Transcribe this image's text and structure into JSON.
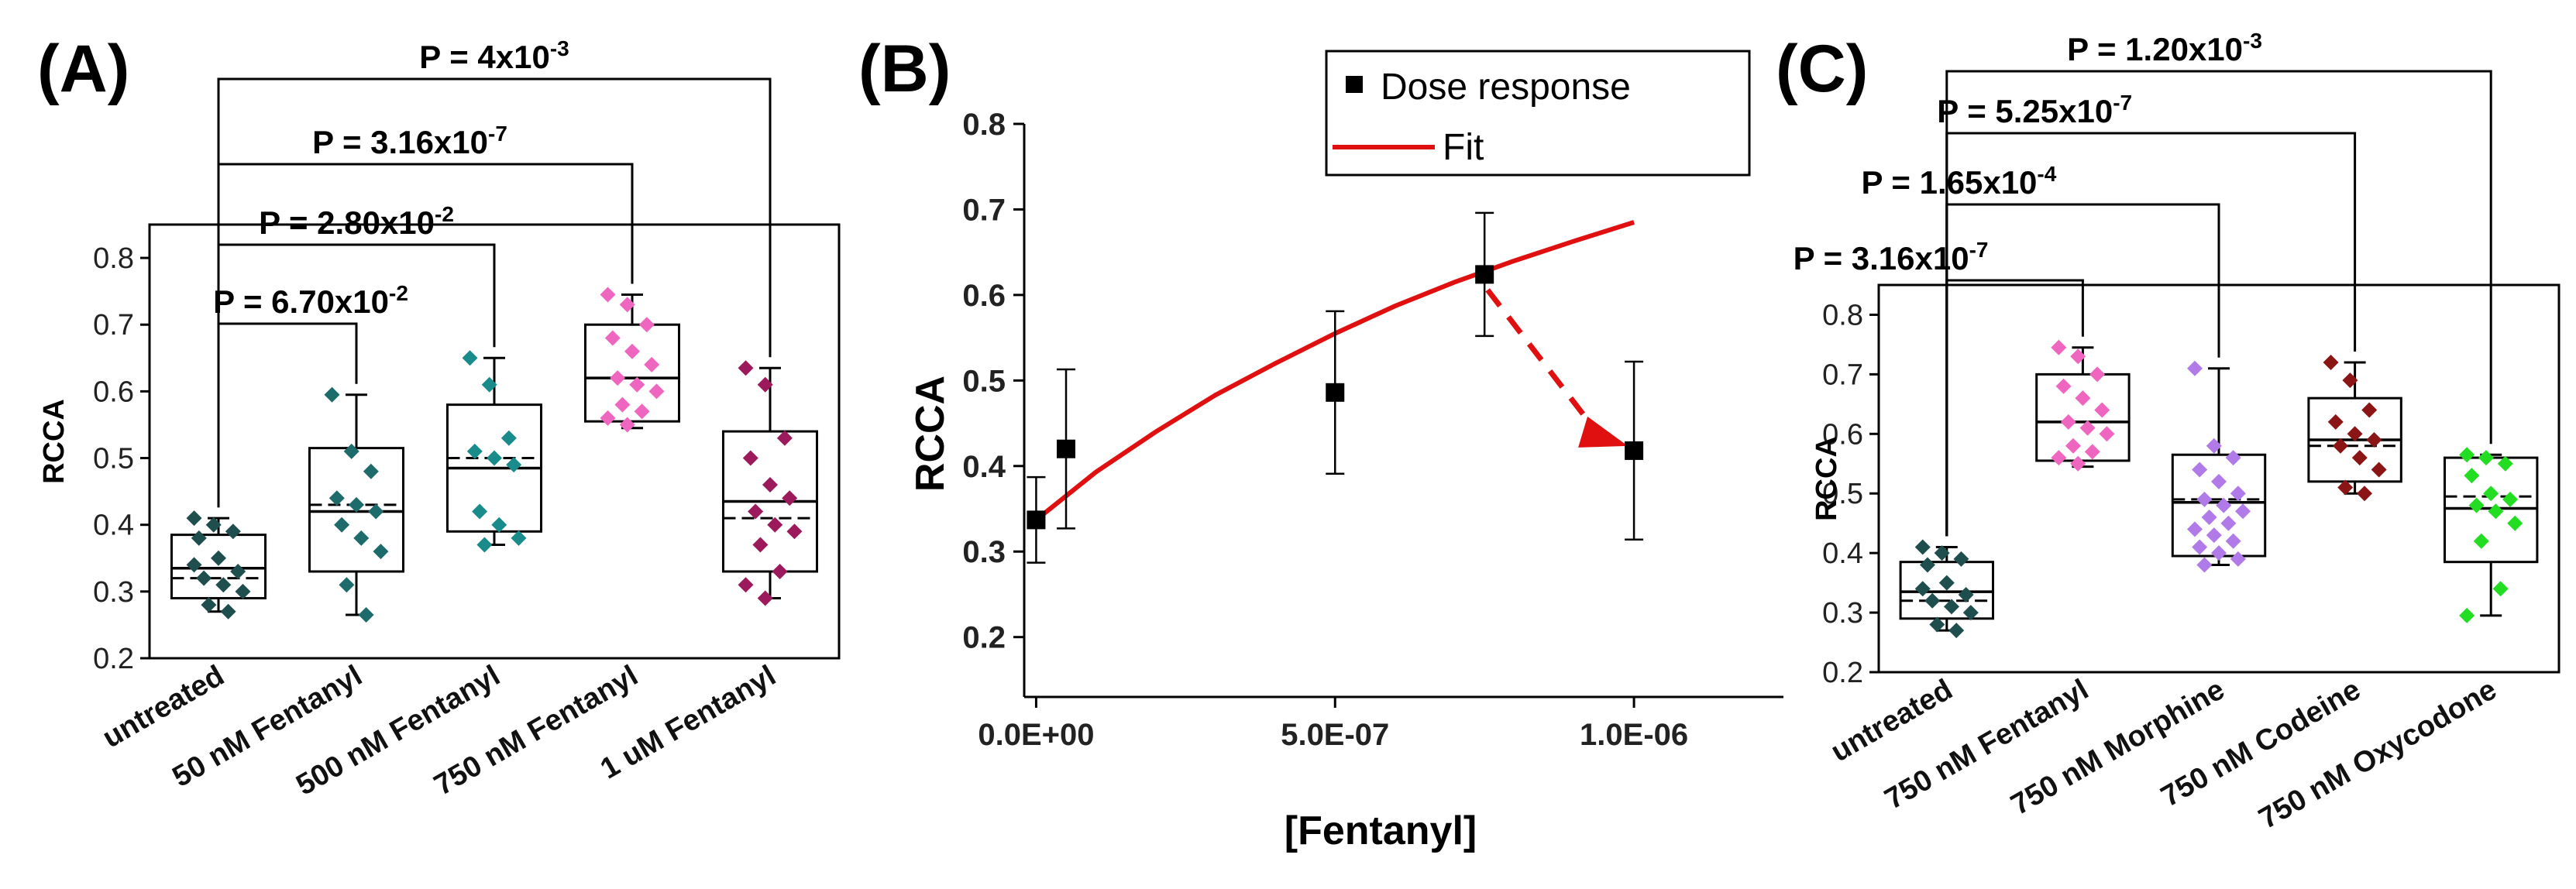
{
  "colors": {
    "untreated": "#1f4e4e",
    "fentanyl_50": "#1d6b6b",
    "fentanyl_500": "#1a8b8b",
    "fentanyl_750": "#ee66c0",
    "fentanyl_1u": "#9c1a5c",
    "morphine": "#b07ae8",
    "codeine": "#8b1515",
    "oxycodone": "#22dd22",
    "fit": "#e01010"
  },
  "chart_data": [
    {
      "type": "box",
      "panel_label": "(A)",
      "ylabel": "RCCA",
      "ylim": [
        0.2,
        0.85
      ],
      "yticks": [
        "0.2",
        "0.3",
        "0.4",
        "0.5",
        "0.6",
        "0.7",
        "0.8"
      ],
      "categories": [
        "untreated",
        "50 nM Fentanyl",
        "500 nM Fentanyl",
        "750 nM Fentanyl",
        "1 uM Fentanyl"
      ],
      "boxes": [
        {
          "q1": 0.29,
          "median": 0.335,
          "mean": 0.32,
          "q3": 0.385,
          "whisker_low": 0.27,
          "whisker_high": 0.41,
          "color": "#1f4e4e",
          "points": [
            0.41,
            0.4,
            0.39,
            0.38,
            0.35,
            0.33,
            0.32,
            0.31,
            0.3,
            0.28,
            0.27,
            0.34
          ]
        },
        {
          "q1": 0.33,
          "median": 0.42,
          "mean": 0.43,
          "q3": 0.515,
          "whisker_low": 0.265,
          "whisker_high": 0.595,
          "color": "#1d6b6b",
          "points": [
            0.595,
            0.51,
            0.48,
            0.44,
            0.43,
            0.42,
            0.4,
            0.38,
            0.36,
            0.31,
            0.265
          ]
        },
        {
          "q1": 0.39,
          "median": 0.485,
          "mean": 0.5,
          "q3": 0.58,
          "whisker_low": 0.37,
          "whisker_high": 0.65,
          "color": "#1a8b8b",
          "points": [
            0.65,
            0.61,
            0.53,
            0.51,
            0.5,
            0.49,
            0.42,
            0.4,
            0.38,
            0.37
          ]
        },
        {
          "q1": 0.555,
          "median": 0.62,
          "mean": 0.62,
          "q3": 0.7,
          "whisker_low": 0.545,
          "whisker_high": 0.745,
          "color": "#ee66c0",
          "points": [
            0.745,
            0.73,
            0.7,
            0.68,
            0.66,
            0.64,
            0.62,
            0.61,
            0.6,
            0.58,
            0.57,
            0.56,
            0.55
          ]
        },
        {
          "q1": 0.33,
          "median": 0.435,
          "mean": 0.41,
          "q3": 0.54,
          "whisker_low": 0.29,
          "whisker_high": 0.635,
          "color": "#9c1a5c",
          "points": [
            0.635,
            0.61,
            0.53,
            0.5,
            0.46,
            0.44,
            0.42,
            0.4,
            0.39,
            0.37,
            0.33,
            0.31,
            0.29
          ]
        }
      ],
      "comparisons": [
        {
          "from": 0,
          "to": 1,
          "label": "P = 6.70x10",
          "exp": "-2"
        },
        {
          "from": 0,
          "to": 2,
          "label": "P = 2.80x10",
          "exp": "-2"
        },
        {
          "from": 0,
          "to": 3,
          "label": "P = 3.16x10",
          "exp": "-7"
        },
        {
          "from": 0,
          "to": 4,
          "label": "P = 4x10",
          "exp": "-3"
        }
      ]
    },
    {
      "type": "scatter",
      "panel_label": "(B)",
      "xlabel": "[Fentanyl]",
      "ylabel": "RCCA",
      "xlim": [
        -2e-08,
        1.25e-06
      ],
      "ylim": [
        0.13,
        0.8
      ],
      "xticks": [
        {
          "value": 0,
          "label": "0.0E+00"
        },
        {
          "value": 5e-07,
          "label": "5.0E-07"
        },
        {
          "value": 1e-06,
          "label": "1.0E-06"
        }
      ],
      "yticks": [
        "0.2",
        "0.3",
        "0.4",
        "0.5",
        "0.6",
        "0.7",
        "0.8"
      ],
      "legend": [
        "Dose response",
        "Fit"
      ],
      "legend_position": "top-right",
      "series": [
        {
          "name": "Dose response",
          "points": [
            {
              "x": 0,
              "y": 0.337,
              "err": 0.05
            },
            {
              "x": 5e-08,
              "y": 0.42,
              "err": 0.093
            },
            {
              "x": 5e-07,
              "y": 0.486,
              "err": 0.095
            },
            {
              "x": 7.5e-07,
              "y": 0.624,
              "err": 0.072
            },
            {
              "x": 1e-06,
              "y": 0.418,
              "err": 0.104
            }
          ]
        },
        {
          "name": "Fit",
          "points": [
            {
              "x": 0,
              "y": 0.337
            },
            {
              "x": 1e-07,
              "y": 0.393
            },
            {
              "x": 2e-07,
              "y": 0.44
            },
            {
              "x": 3e-07,
              "y": 0.483
            },
            {
              "x": 4e-07,
              "y": 0.52
            },
            {
              "x": 5e-07,
              "y": 0.555
            },
            {
              "x": 6e-07,
              "y": 0.587
            },
            {
              "x": 7e-07,
              "y": 0.615
            },
            {
              "x": 8e-07,
              "y": 0.64
            },
            {
              "x": 9e-07,
              "y": 0.663
            },
            {
              "x": 1e-06,
              "y": 0.685
            }
          ]
        }
      ],
      "annotation": {
        "type": "dashed-arrow",
        "from": {
          "x": 7.5e-07,
          "y": 0.624
        },
        "to": {
          "x": 1e-06,
          "y": 0.418
        }
      }
    },
    {
      "type": "box",
      "panel_label": "(C)",
      "ylabel": "RCCA",
      "ylim": [
        0.2,
        0.85
      ],
      "yticks": [
        "0.2",
        "0.3",
        "0.4",
        "0.5",
        "0.6",
        "0.7",
        "0.8"
      ],
      "categories": [
        "untreated",
        "750 nM Fentanyl",
        "750 nM Morphine",
        "750 nM Codeine",
        "750 nM Oxycodone"
      ],
      "boxes": [
        {
          "q1": 0.29,
          "median": 0.335,
          "mean": 0.32,
          "q3": 0.385,
          "whisker_low": 0.27,
          "whisker_high": 0.41,
          "color": "#1f4e4e",
          "points": [
            0.41,
            0.4,
            0.39,
            0.38,
            0.35,
            0.33,
            0.32,
            0.31,
            0.3,
            0.28,
            0.27,
            0.34
          ]
        },
        {
          "q1": 0.555,
          "median": 0.62,
          "mean": 0.62,
          "q3": 0.7,
          "whisker_low": 0.545,
          "whisker_high": 0.745,
          "color": "#ee66c0",
          "points": [
            0.745,
            0.73,
            0.7,
            0.68,
            0.66,
            0.64,
            0.62,
            0.61,
            0.6,
            0.58,
            0.57,
            0.56,
            0.55
          ]
        },
        {
          "q1": 0.395,
          "median": 0.485,
          "mean": 0.49,
          "q3": 0.565,
          "whisker_low": 0.38,
          "whisker_high": 0.71,
          "color": "#b07ae8",
          "points": [
            0.71,
            0.58,
            0.56,
            0.54,
            0.52,
            0.5,
            0.49,
            0.48,
            0.47,
            0.46,
            0.45,
            0.44,
            0.43,
            0.42,
            0.41,
            0.4,
            0.39,
            0.38
          ]
        },
        {
          "q1": 0.52,
          "median": 0.59,
          "mean": 0.58,
          "q3": 0.66,
          "whisker_low": 0.5,
          "whisker_high": 0.72,
          "color": "#8b1515",
          "points": [
            0.72,
            0.69,
            0.64,
            0.62,
            0.6,
            0.59,
            0.58,
            0.56,
            0.54,
            0.51,
            0.5
          ]
        },
        {
          "q1": 0.385,
          "median": 0.475,
          "mean": 0.495,
          "q3": 0.56,
          "whisker_low": 0.295,
          "whisker_high": 0.565,
          "color": "#22dd22",
          "points": [
            0.565,
            0.56,
            0.55,
            0.53,
            0.5,
            0.49,
            0.48,
            0.47,
            0.45,
            0.42,
            0.34,
            0.295
          ]
        }
      ],
      "comparisons": [
        {
          "from": 0,
          "to": 1,
          "label": "P = 3.16x10",
          "exp": "-7"
        },
        {
          "from": 0,
          "to": 2,
          "label": "P = 1.65x10",
          "exp": "-4"
        },
        {
          "from": 0,
          "to": 3,
          "label": "P = 5.25x10",
          "exp": "-7"
        },
        {
          "from": 0,
          "to": 4,
          "label": "P = 1.20x10",
          "exp": "-3"
        }
      ]
    }
  ]
}
